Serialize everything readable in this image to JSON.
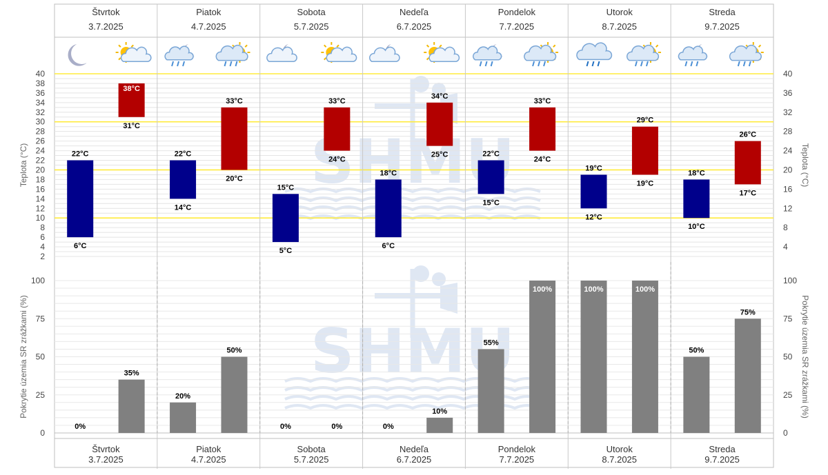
{
  "days": [
    {
      "name": "Štvrtok",
      "date": "3.7.2025",
      "icons": [
        "moon-icon",
        "sun-cloud-icon"
      ]
    },
    {
      "name": "Piatok",
      "date": "4.7.2025",
      "icons": [
        "moon-cloud-rain-icon",
        "sun-cloud-rain-icon"
      ]
    },
    {
      "name": "Sobota",
      "date": "5.7.2025",
      "icons": [
        "moon-cloud-icon",
        "sun-cloud-icon"
      ]
    },
    {
      "name": "Nedeľa",
      "date": "6.7.2025",
      "icons": [
        "moon-cloud-icon",
        "sun-cloud-icon"
      ]
    },
    {
      "name": "Pondelok",
      "date": "7.7.2025",
      "icons": [
        "moon-cloud-rain-icon",
        "sun-cloud-rain-icon"
      ]
    },
    {
      "name": "Utorok",
      "date": "8.7.2025",
      "icons": [
        "cloud-rain-icon",
        "sun-cloud-rain-icon"
      ]
    },
    {
      "name": "Streda",
      "date": "9.7.2025",
      "icons": [
        "moon-cloud-rain-icon",
        "sun-cloud-rain-icon"
      ]
    }
  ],
  "colors": {
    "night": "#00008b",
    "day": "#b30000",
    "precip": "#808080",
    "threshold": "#ffeb3b",
    "watermark": "#dfe7f3"
  },
  "watermark_text": "SHMU",
  "chart_data": [
    {
      "type": "bar",
      "ylabel": "Teplota (°C)",
      "ylabel_right": "Teplota (°C)",
      "ylim": [
        2,
        40
      ],
      "yticks_left": [
        2,
        4,
        6,
        8,
        10,
        12,
        14,
        16,
        18,
        20,
        22,
        24,
        26,
        28,
        30,
        32,
        34,
        36,
        38,
        40
      ],
      "yticks_right": [
        4,
        8,
        12,
        16,
        20,
        24,
        28,
        32,
        36,
        40
      ],
      "reference_lines": [
        10,
        20,
        30,
        40
      ],
      "categories": [
        "Štvrtok 3.7.2025",
        "Piatok 4.7.2025",
        "Sobota 5.7.2025",
        "Nedeľa 6.7.2025",
        "Pondelok 7.7.2025",
        "Utorok 8.7.2025",
        "Streda 9.7.2025"
      ],
      "series": [
        {
          "values": [
            [
              6,
              22
            ],
            [
              14,
              22
            ],
            [
              5,
              15
            ],
            [
              6,
              18
            ],
            [
              15,
              22
            ],
            [
              12,
              19
            ],
            [
              10,
              18
            ]
          ]
        },
        {
          "values": [
            [
              31,
              38
            ],
            [
              20,
              33
            ],
            [
              24,
              33
            ],
            [
              25,
              34
            ],
            [
              24,
              33
            ],
            [
              19,
              29
            ],
            [
              17,
              26
            ]
          ]
        }
      ],
      "unit": "°C"
    },
    {
      "type": "bar",
      "ylabel": "Pokrytie územia SR zrážkami (%)",
      "ylabel_right": "Pokrytie územia SR zrážkami (%)",
      "ylim": [
        0,
        100
      ],
      "yticks": [
        0,
        25,
        50,
        75,
        100
      ],
      "categories": [
        "Štvrtok 3.7.2025",
        "Piatok 4.7.2025",
        "Sobota 5.7.2025",
        "Nedeľa 6.7.2025",
        "Pondelok 7.7.2025",
        "Utorok 8.7.2025",
        "Streda 9.7.2025"
      ],
      "series": [
        {
          "values": [
            0,
            20,
            0,
            0,
            55,
            100,
            50
          ]
        },
        {
          "values": [
            35,
            50,
            0,
            10,
            100,
            100,
            75
          ]
        }
      ],
      "unit": "%"
    }
  ]
}
